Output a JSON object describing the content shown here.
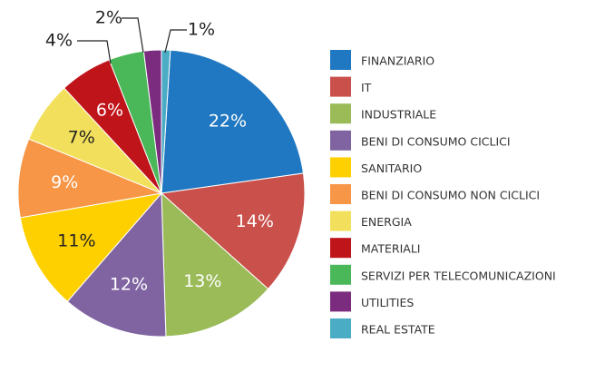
{
  "chart_data": {
    "type": "pie",
    "categories": [
      "FINANZIARIO",
      "IT",
      "INDUSTRIALE",
      "BENI DI CONSUMO CICLICI",
      "SANITARIO",
      "BENI DI CONSUMO NON CICLICI",
      "ENERGIA",
      "MATERIALI",
      "SERVIZI PER TELECOMUNICAZIONI",
      "UTILITIES",
      "REAL ESTATE"
    ],
    "values": [
      22,
      14,
      13,
      12,
      11,
      9,
      7,
      6,
      4,
      2,
      1
    ],
    "value_labels": [
      "22%",
      "14%",
      "13%",
      "12%",
      "11%",
      "9%",
      "7%",
      "6%",
      "4%",
      "2%",
      "1%"
    ],
    "colors": [
      "#1f78c1",
      "#c9504b",
      "#9bbb59",
      "#8064a2",
      "#ffd000",
      "#f79646",
      "#f2e05c",
      "#c0141b",
      "#4ab858",
      "#7b2c7e",
      "#4bacc6"
    ],
    "legend": "right"
  }
}
